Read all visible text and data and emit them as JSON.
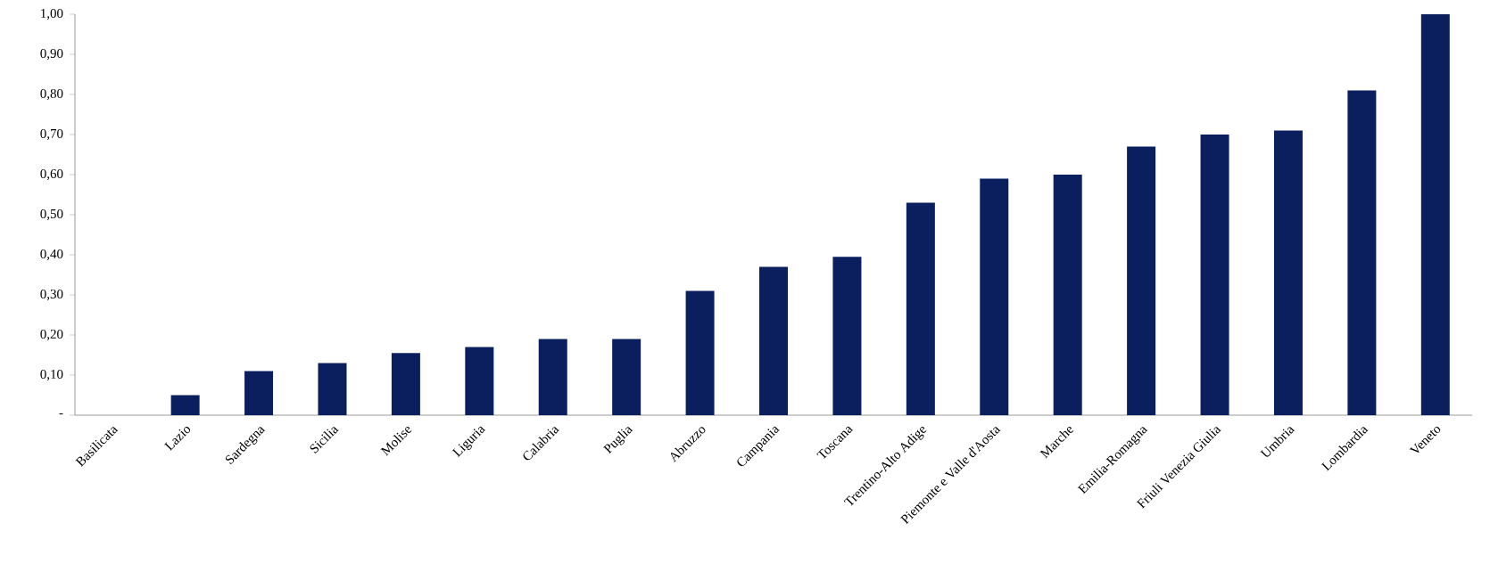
{
  "chart_data": {
    "type": "bar",
    "color": "#0b1f5e",
    "categories": [
      "Basilicata",
      "Lazio",
      "Sardegna",
      "Sicilia",
      "Molise",
      "Liguria",
      "Calabria",
      "Puglia",
      "Abruzzo",
      "Campania",
      "Toscana",
      "Trentino-Alto Adige",
      "Piemonte e Valle d'Aosta",
      "Marche",
      "Emilia-Romagna",
      "Friuli Venezia Giulia",
      "Umbria",
      "Lombardia",
      "Veneto"
    ],
    "values": [
      0,
      0.05,
      0.11,
      0.13,
      0.155,
      0.17,
      0.19,
      0.19,
      0.31,
      0.37,
      0.395,
      0.53,
      0.59,
      0.6,
      0.67,
      0.7,
      0.71,
      0.81,
      1.0
    ],
    "ylim": [
      0,
      1.0
    ],
    "yticks": [
      {
        "value": 0,
        "label": "-"
      },
      {
        "value": 0.1,
        "label": "0,10"
      },
      {
        "value": 0.2,
        "label": "0,20"
      },
      {
        "value": 0.3,
        "label": "0,30"
      },
      {
        "value": 0.4,
        "label": "0,40"
      },
      {
        "value": 0.5,
        "label": "0,50"
      },
      {
        "value": 0.6,
        "label": "0,60"
      },
      {
        "value": 0.7,
        "label": "0,70"
      },
      {
        "value": 0.8,
        "label": "0,80"
      },
      {
        "value": 0.9,
        "label": "0,90"
      },
      {
        "value": 1.0,
        "label": "1,00"
      }
    ],
    "grid": false
  }
}
